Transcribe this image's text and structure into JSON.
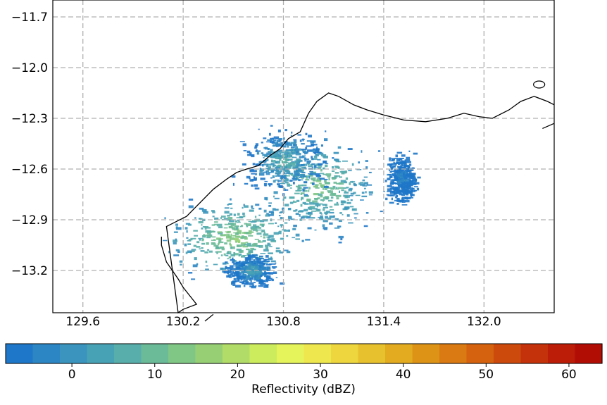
{
  "map": {
    "type": "radar-reflectivity-map",
    "lon_ticks": [
      "129.6",
      "130.2",
      "130.8",
      "131.4",
      "132.0"
    ],
    "lat_ticks": [
      "−11.7",
      "−12.0",
      "−12.3",
      "−12.6",
      "−12.9",
      "−13.2"
    ],
    "lon_range": [
      129.42,
      132.42
    ],
    "lat_range": [
      -13.45,
      -11.6
    ],
    "grid": true,
    "grid_style": "dashed-gray",
    "coastline_color": "#000000"
  },
  "colorbar": {
    "label": "Reflectivity (dBZ)",
    "ticks": [
      "0",
      "10",
      "20",
      "30",
      "40",
      "50",
      "60"
    ],
    "range": [
      -8,
      64
    ],
    "orientation": "horizontal",
    "colors": [
      "#1f77c9",
      "#2d86c4",
      "#3a94bd",
      "#48a2b5",
      "#58aeaa",
      "#6bba98",
      "#80c785",
      "#97d074",
      "#b2dc68",
      "#ccec5e",
      "#e5f45a",
      "#eee84e",
      "#eed63e",
      "#e8c22e",
      "#e2ab20",
      "#dd9416",
      "#d97a12",
      "#d4620f",
      "#cd4a0d",
      "#c4320b",
      "#bb1d08",
      "#b20d05"
    ]
  },
  "chart_data": {
    "type": "heatmap",
    "title": "",
    "xlabel": "",
    "ylabel": "",
    "x_ticks": [
      129.6,
      130.2,
      130.8,
      131.4,
      132.0
    ],
    "y_ticks": [
      -11.7,
      -12.0,
      -12.3,
      -12.6,
      -12.9,
      -13.2
    ],
    "xlim": [
      129.42,
      132.42
    ],
    "ylim": [
      -13.45,
      -11.6
    ],
    "colorbar_label": "Reflectivity (dBZ)",
    "colorbar_range": [
      -8,
      64
    ],
    "colorbar_ticks": [
      0,
      10,
      20,
      30,
      40,
      50,
      60
    ],
    "echo_regions": [
      {
        "lon": 130.5,
        "lat": -13.0,
        "dbz_max": 18
      },
      {
        "lon": 131.0,
        "lat": -12.7,
        "dbz_max": 16
      },
      {
        "lon": 130.8,
        "lat": -12.55,
        "dbz_max": 10
      },
      {
        "lon": 131.5,
        "lat": -12.65,
        "dbz_max": 2
      },
      {
        "lon": 130.6,
        "lat": -13.2,
        "dbz_max": 8
      }
    ],
    "coastline": [
      [
        130.07,
        -13.0
      ],
      [
        130.07,
        -13.05
      ],
      [
        130.1,
        -13.15
      ],
      [
        130.17,
        -13.25
      ],
      [
        130.2,
        -13.3
      ],
      [
        130.24,
        -13.35
      ],
      [
        130.28,
        -13.4
      ],
      [
        130.2,
        -13.43
      ],
      [
        130.17,
        -13.45
      ],
      [
        130.1,
        -12.94
      ],
      [
        130.22,
        -12.88
      ],
      [
        130.32,
        -12.78
      ],
      [
        130.38,
        -12.72
      ],
      [
        130.46,
        -12.66
      ],
      [
        130.52,
        -12.62
      ],
      [
        130.58,
        -12.6
      ],
      [
        130.65,
        -12.58
      ],
      [
        130.72,
        -12.52
      ],
      [
        130.78,
        -12.48
      ],
      [
        130.83,
        -12.42
      ],
      [
        130.9,
        -12.38
      ],
      [
        130.95,
        -12.27
      ],
      [
        131.0,
        -12.2
      ],
      [
        131.07,
        -12.15
      ],
      [
        131.13,
        -12.17
      ],
      [
        131.22,
        -12.22
      ],
      [
        131.3,
        -12.25
      ],
      [
        131.4,
        -12.28
      ],
      [
        131.52,
        -12.31
      ],
      [
        131.65,
        -12.32
      ],
      [
        131.78,
        -12.3
      ],
      [
        131.88,
        -12.27
      ],
      [
        131.97,
        -12.29
      ],
      [
        132.05,
        -12.3
      ],
      [
        132.15,
        -12.25
      ],
      [
        132.22,
        -12.2
      ],
      [
        132.3,
        -12.17
      ],
      [
        132.38,
        -12.2
      ],
      [
        132.42,
        -12.22
      ]
    ]
  }
}
